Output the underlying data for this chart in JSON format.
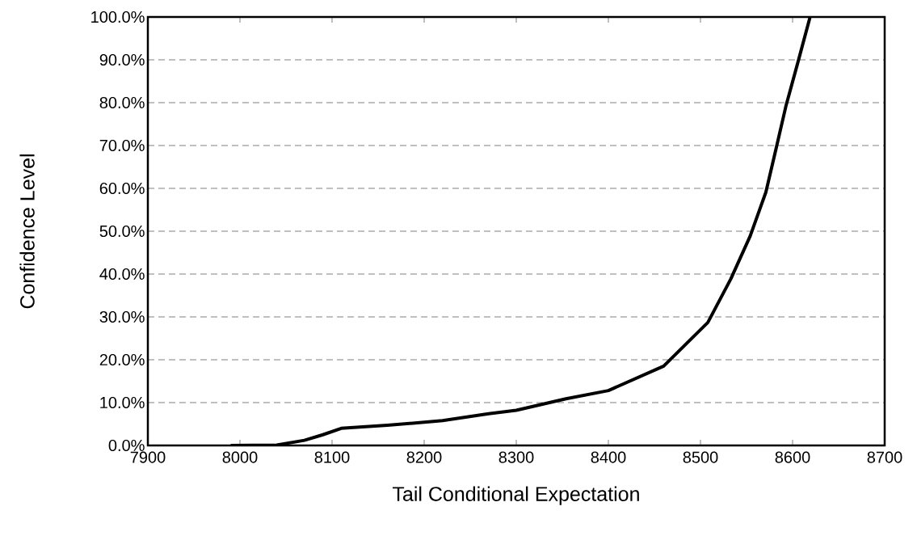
{
  "chart_data": {
    "type": "line",
    "xlabel": "Tail Conditional Expectation",
    "ylabel": "Confidence Level",
    "x": [
      7990,
      8040,
      8070,
      8090,
      8110,
      8160,
      8220,
      8270,
      8300,
      8354,
      8400,
      8460,
      8508,
      8533,
      8554,
      8571,
      8582,
      8593,
      8606,
      8619
    ],
    "series": [
      {
        "color": "#000000",
        "values": [
          0,
          0.1,
          1.2,
          2.5,
          4.0,
          4.7,
          5.8,
          7.4,
          8.2,
          10.9,
          12.8,
          18.5,
          28.7,
          38.9,
          48.9,
          59.1,
          69.2,
          79.4,
          89.6,
          100
        ]
      }
    ],
    "xlim": [
      7900,
      8700
    ],
    "xticks": [
      7900,
      8000,
      8100,
      8200,
      8300,
      8400,
      8500,
      8600,
      8700
    ],
    "ylim": [
      0,
      100
    ],
    "yticks": [
      {
        "value": 0,
        "label": "0.0%"
      },
      {
        "value": 10,
        "label": "10.0%"
      },
      {
        "value": 20,
        "label": "20.0%"
      },
      {
        "value": 30,
        "label": "30.0%"
      },
      {
        "value": 40,
        "label": "40.0%"
      },
      {
        "value": 50,
        "label": "50.0%"
      },
      {
        "value": 60,
        "label": "60.0%"
      },
      {
        "value": 70,
        "label": "70.0%"
      },
      {
        "value": 80,
        "label": "80.0%"
      },
      {
        "value": 90,
        "label": "90.0%"
      },
      {
        "value": 100,
        "label": "100.0%"
      }
    ],
    "grid": "y",
    "marker": "none",
    "line_style": "solid"
  }
}
